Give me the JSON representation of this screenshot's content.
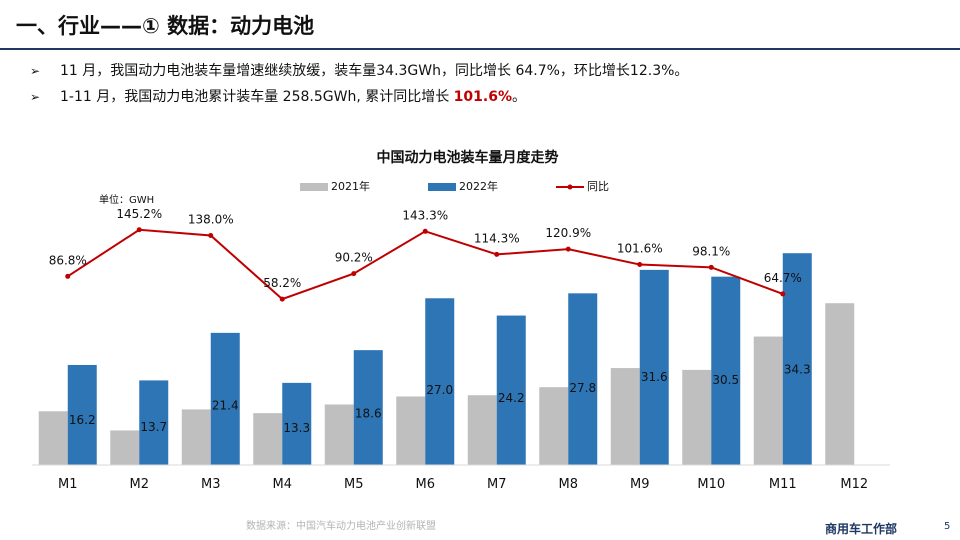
{
  "slide": {
    "title": "一、行业——① 数据：动力电池",
    "bullets": [
      {
        "marker": "➢",
        "text": "11 月，我国动力电池装车量增速继续放缓，装车量34.3GWh，同比增长 64.7%，环比增长12.3%。",
        "highlight": ""
      },
      {
        "marker": "➢",
        "text": "1-11 月，我国动力电池累计装车量 258.5GWh, 累计同比增长 ",
        "highlight": "101.6%",
        "suffix": "。"
      }
    ],
    "source": "数据来源：中国汽车动力电池产业创新联盟",
    "department": "商用车工作部",
    "page_number": "5"
  },
  "chart_data": {
    "type": "bar",
    "title": "中国动力电池装车量月度走势",
    "unit_label": "单位：GWH",
    "categories": [
      "M1",
      "M2",
      "M3",
      "M4",
      "M5",
      "M6",
      "M7",
      "M8",
      "M9",
      "M10",
      "M11",
      "M12"
    ],
    "series": [
      {
        "name": "2021年",
        "type": "bar",
        "color": "#bfbfbf",
        "values": [
          8.7,
          5.6,
          9.0,
          8.4,
          9.8,
          11.1,
          11.3,
          12.6,
          15.7,
          15.4,
          20.8,
          26.2
        ]
      },
      {
        "name": "2022年",
        "type": "bar",
        "color": "#2e75b6",
        "values": [
          16.2,
          13.7,
          21.4,
          13.3,
          18.6,
          27.0,
          24.2,
          27.8,
          31.6,
          30.5,
          34.3,
          null
        ],
        "labels": [
          "16.2",
          "13.7",
          "21.4",
          "13.3",
          "18.6",
          "27.0",
          "24.2",
          "27.8",
          "31.6",
          "30.5",
          "34.3",
          ""
        ]
      },
      {
        "name": "同比",
        "type": "line",
        "color": "#c00000",
        "axis": "secondary",
        "values": [
          86.8,
          145.2,
          138.0,
          58.2,
          90.2,
          143.3,
          114.3,
          120.9,
          101.6,
          98.1,
          64.7,
          null
        ],
        "labels": [
          "86.8%",
          "145.2%",
          "138.0%",
          "58.2%",
          "90.2%",
          "143.3%",
          "114.3%",
          "120.9%",
          "101.6%",
          "98.1%",
          "64.7%",
          ""
        ]
      }
    ],
    "ylim": [
      0,
      40
    ],
    "ylim_secondary": [
      -150,
      160
    ],
    "grid": false,
    "legend": "top-center"
  }
}
